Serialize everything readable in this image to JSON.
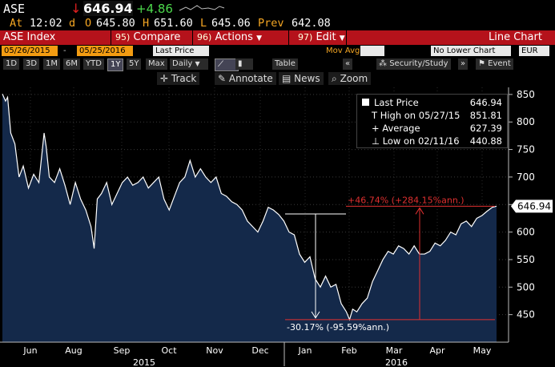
{
  "quote": {
    "symbol": "ASE",
    "direction_arrow": "↓",
    "last": "646.94",
    "change": "+4.86",
    "time_label": "At",
    "time": "12:02",
    "time_suffix": "d",
    "open_label": "O",
    "open": "645.80",
    "high_label": "H",
    "high": "651.60",
    "low_label": "L",
    "low": "645.06",
    "prev_label": "Prev",
    "prev": "642.08"
  },
  "command_bar": {
    "title": "ASE Index",
    "compare_num": "95)",
    "compare": "Compare",
    "actions_num": "96)",
    "actions": "Actions",
    "edit_num": "97)",
    "edit": "Edit",
    "chart_type": "Line Chart"
  },
  "settings": {
    "start_date": "05/26/2015",
    "dash": "-",
    "end_date": "05/25/2016",
    "field": "Last Price",
    "mov_avg": "Mov Avg",
    "lower_chart": "No Lower Chart",
    "currency": "EUR"
  },
  "ranges": [
    "1D",
    "3D",
    "1M",
    "6M",
    "YTD",
    "1Y",
    "5Y",
    "Max"
  ],
  "selected_range": "1Y",
  "frequency": "Daily",
  "table_label": "Table",
  "security_study": "Security/Study",
  "event": "Event",
  "tools": {
    "track": "Track",
    "annotate": "Annotate",
    "news": "News",
    "zoom": "Zoom"
  },
  "legend": {
    "last_price_label": "Last Price",
    "last_price": "646.94",
    "high_label": "High on 05/27/15",
    "high": "851.81",
    "average_label": "Average",
    "average": "627.39",
    "low_label": "Low on 02/11/16",
    "low": "440.88"
  },
  "annotations": {
    "gain": "+46.74% (+284.15%ann.)",
    "loss": "-30.17% (-95.59%ann.)"
  },
  "current_price_tag": "646.94",
  "colors": {
    "accent_red": "#b5121b",
    "amber": "#f5a623",
    "green": "#4cd84c",
    "down_red": "#e02020",
    "fill": "#14294a"
  },
  "chart_data": {
    "type": "area",
    "ylim": [
      400,
      860
    ],
    "y_ticks": [
      450,
      500,
      550,
      600,
      650,
      700,
      750,
      800,
      850
    ],
    "x_months": [
      "Jun",
      "Aug",
      "Sep",
      "Oct",
      "Nov",
      "Dec",
      "Jan",
      "Feb",
      "Mar",
      "Apr",
      "May"
    ],
    "years": [
      "2015",
      "2016"
    ],
    "points": [
      [
        0,
        851
      ],
      [
        3,
        838
      ],
      [
        5,
        845
      ],
      [
        8,
        780
      ],
      [
        12,
        760
      ],
      [
        16,
        700
      ],
      [
        20,
        720
      ],
      [
        25,
        680
      ],
      [
        30,
        705
      ],
      [
        35,
        690
      ],
      [
        40,
        780
      ],
      [
        42,
        755
      ],
      [
        45,
        700
      ],
      [
        50,
        690
      ],
      [
        55,
        715
      ],
      [
        60,
        685
      ],
      [
        65,
        650
      ],
      [
        70,
        690
      ],
      [
        75,
        660
      ],
      [
        80,
        640
      ],
      [
        85,
        610
      ],
      [
        88,
        570
      ],
      [
        91,
        660
      ],
      [
        95,
        670
      ],
      [
        100,
        690
      ],
      [
        105,
        650
      ],
      [
        110,
        670
      ],
      [
        115,
        690
      ],
      [
        120,
        700
      ],
      [
        125,
        685
      ],
      [
        130,
        690
      ],
      [
        135,
        700
      ],
      [
        140,
        680
      ],
      [
        145,
        690
      ],
      [
        150,
        700
      ],
      [
        155,
        660
      ],
      [
        160,
        640
      ],
      [
        165,
        665
      ],
      [
        170,
        690
      ],
      [
        175,
        700
      ],
      [
        180,
        730
      ],
      [
        185,
        700
      ],
      [
        190,
        715
      ],
      [
        195,
        700
      ],
      [
        200,
        690
      ],
      [
        205,
        700
      ],
      [
        210,
        670
      ],
      [
        215,
        665
      ],
      [
        220,
        655
      ],
      [
        225,
        650
      ],
      [
        230,
        640
      ],
      [
        235,
        620
      ],
      [
        240,
        610
      ],
      [
        245,
        600
      ],
      [
        250,
        620
      ],
      [
        255,
        645
      ],
      [
        260,
        640
      ],
      [
        265,
        632
      ],
      [
        270,
        620
      ],
      [
        275,
        600
      ],
      [
        280,
        595
      ],
      [
        285,
        560
      ],
      [
        290,
        545
      ],
      [
        295,
        555
      ],
      [
        300,
        515
      ],
      [
        305,
        500
      ],
      [
        310,
        520
      ],
      [
        315,
        500
      ],
      [
        320,
        505
      ],
      [
        325,
        470
      ],
      [
        330,
        455
      ],
      [
        333,
        441
      ],
      [
        336,
        460
      ],
      [
        340,
        455
      ],
      [
        345,
        470
      ],
      [
        350,
        480
      ],
      [
        355,
        510
      ],
      [
        360,
        530
      ],
      [
        365,
        550
      ],
      [
        370,
        565
      ],
      [
        375,
        560
      ],
      [
        380,
        575
      ],
      [
        385,
        570
      ],
      [
        390,
        560
      ],
      [
        395,
        575
      ],
      [
        400,
        560
      ],
      [
        405,
        560
      ],
      [
        410,
        565
      ],
      [
        415,
        580
      ],
      [
        420,
        575
      ],
      [
        425,
        585
      ],
      [
        430,
        600
      ],
      [
        435,
        595
      ],
      [
        440,
        615
      ],
      [
        445,
        620
      ],
      [
        450,
        610
      ],
      [
        455,
        625
      ],
      [
        460,
        630
      ],
      [
        465,
        638
      ],
      [
        470,
        645
      ],
      [
        474,
        647
      ]
    ]
  }
}
